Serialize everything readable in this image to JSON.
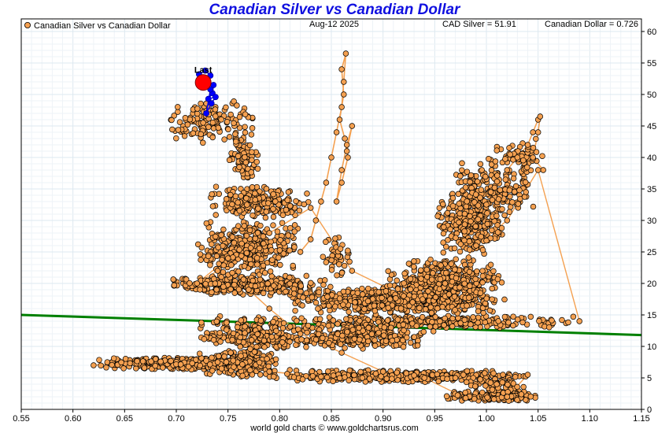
{
  "chart_data": {
    "type": "scatter",
    "title": "Canadian Silver vs Canadian Dollar",
    "legend": "Canadian Silver vs Canadian Dollar",
    "date": "Aug-12  2025",
    "cad_silver": "CAD Silver = 51.91",
    "cad_dollar": "Canadian Dollar = 0.726",
    "last_label": "Last",
    "footer": "world gold charts © www.goldchartsrus.com",
    "xlim": [
      0.55,
      1.15
    ],
    "ylim": [
      0,
      62
    ],
    "x_ticks": [
      "0.55",
      "0.60",
      "0.65",
      "0.70",
      "0.75",
      "0.80",
      "0.85",
      "0.90",
      "0.95",
      "1.00",
      "1.05",
      "1.10",
      "1.15"
    ],
    "y_ticks": [
      "0",
      "5",
      "10",
      "15",
      "20",
      "25",
      "30",
      "35",
      "40",
      "45",
      "50",
      "55",
      "60"
    ],
    "grid": true,
    "colors": {
      "points": "#f4a050",
      "line": "#f4a050",
      "recent": "#0000ff",
      "last": "#ff0000",
      "trend": "#008000",
      "title": "#1010e0"
    },
    "trend": {
      "x": [
        0.55,
        1.15
      ],
      "y": [
        15.0,
        11.8
      ]
    },
    "last_point": {
      "x": 0.726,
      "y": 51.91
    },
    "clusters": [
      {
        "x": [
          0.62,
          0.8
        ],
        "y": [
          6.3,
          8.3
        ],
        "n": 380
      },
      {
        "x": [
          0.72,
          0.8
        ],
        "y": [
          5.0,
          9.5
        ],
        "n": 200
      },
      {
        "x": [
          0.78,
          1.05
        ],
        "y": [
          4.2,
          6.3
        ],
        "n": 380
      },
      {
        "x": [
          0.96,
          1.05
        ],
        "y": [
          1.2,
          3.2
        ],
        "n": 160
      },
      {
        "x": [
          0.98,
          1.04
        ],
        "y": [
          2.5,
          5.0
        ],
        "n": 60
      },
      {
        "x": [
          0.72,
          0.83
        ],
        "y": [
          9.0,
          15.0
        ],
        "n": 220
      },
      {
        "x": [
          0.8,
          1.09
        ],
        "y": [
          12.8,
          15.0
        ],
        "n": 300
      },
      {
        "x": [
          0.8,
          0.95
        ],
        "y": [
          9.5,
          13.5
        ],
        "n": 280
      },
      {
        "x": [
          0.8,
          1.02
        ],
        "y": [
          15.0,
          19.5
        ],
        "n": 500
      },
      {
        "x": [
          0.69,
          0.85
        ],
        "y": [
          18.0,
          21.5
        ],
        "n": 300
      },
      {
        "x": [
          0.9,
          1.02
        ],
        "y": [
          17.0,
          24.0
        ],
        "n": 360
      },
      {
        "x": [
          0.72,
          0.82
        ],
        "y": [
          21.0,
          30.0
        ],
        "n": 360
      },
      {
        "x": [
          0.73,
          0.83
        ],
        "y": [
          30.0,
          36.0
        ],
        "n": 200
      },
      {
        "x": [
          0.75,
          0.78
        ],
        "y": [
          36.0,
          44.0
        ],
        "n": 100
      },
      {
        "x": [
          0.69,
          0.78
        ],
        "y": [
          42.0,
          49.0
        ],
        "n": 140
      },
      {
        "x": [
          0.95,
          1.02
        ],
        "y": [
          24.0,
          35.0
        ],
        "n": 280
      },
      {
        "x": [
          0.96,
          1.05
        ],
        "y": [
          30.0,
          40.0
        ],
        "n": 220
      },
      {
        "x": [
          1.0,
          1.06
        ],
        "y": [
          37.0,
          43.0
        ],
        "n": 60
      },
      {
        "x": [
          0.84,
          0.87
        ],
        "y": [
          20.0,
          28.0
        ],
        "n": 40
      }
    ],
    "spike": {
      "x": [
        0.82,
        0.83,
        0.835,
        0.84,
        0.845,
        0.85,
        0.855,
        0.86,
        0.862,
        0.864,
        0.86,
        0.862,
        0.858,
        0.863,
        0.866,
        0.86,
        0.855,
        0.86,
        0.865,
        0.87,
        0.865
      ],
      "y": [
        25,
        27,
        30,
        33,
        36,
        40,
        44,
        48,
        52,
        56.5,
        54,
        50,
        46,
        43,
        40,
        36,
        33,
        38,
        42,
        45,
        41
      ]
    },
    "right_spike": {
      "x": [
        1.02,
        1.03,
        1.04,
        1.045,
        1.05,
        1.052,
        1.05,
        1.045,
        1.055
      ],
      "y": [
        38,
        40,
        42,
        44,
        46,
        46.5,
        44,
        40,
        38
      ]
    },
    "path": {
      "x": [
        0.62,
        0.68,
        0.74,
        0.79,
        0.84,
        0.88,
        0.93,
        0.97,
        1.01,
        1.04,
        1.02,
        0.98,
        0.94,
        0.9,
        0.86,
        0.82,
        0.79,
        0.77,
        0.74,
        0.72,
        0.75,
        0.79,
        0.83,
        0.87,
        0.92,
        0.96,
        0.99,
        1.02,
        1.05,
        1.09
      ],
      "y": [
        7,
        8,
        7.5,
        6,
        5.2,
        5,
        5.4,
        5,
        4,
        5.5,
        2,
        1.8,
        5,
        6,
        9,
        12,
        16,
        19,
        22,
        20,
        24,
        28,
        32,
        22,
        18,
        20,
        26,
        30,
        38,
        14
      ]
    },
    "recent": {
      "x": [
        0.722,
        0.728,
        0.733,
        0.73,
        0.736,
        0.735,
        0.731,
        0.738,
        0.734,
        0.729,
        0.733,
        0.727
      ],
      "y": [
        53.2,
        53.8,
        53.0,
        52.2,
        51.5,
        50.2,
        49.3,
        49.6,
        48.6,
        47.0,
        50.8,
        51.9
      ]
    }
  }
}
